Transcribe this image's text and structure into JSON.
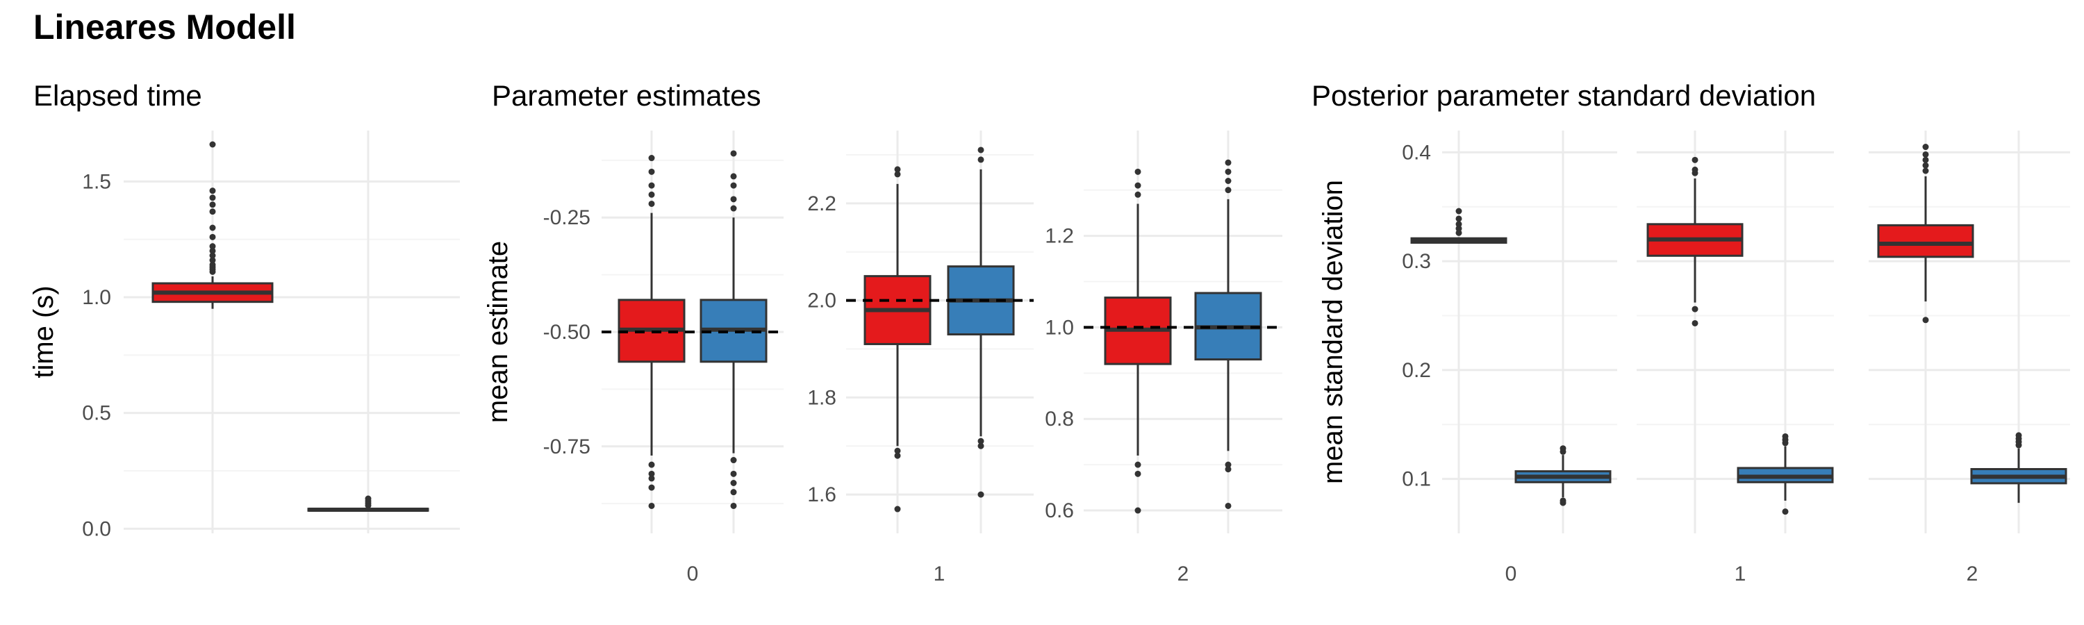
{
  "title": "Lineares Modell",
  "colors": {
    "red": "#e41a1c",
    "blue": "#377eb8",
    "grid_major": "#ebebeb",
    "grid_minor": "#f4f4f4",
    "stroke": "#333333"
  },
  "panel_titles": {
    "elapsed": "Elapsed time",
    "params": "Parameter estimates",
    "posterior": "Posterior parameter standard deviation"
  },
  "chart_data": [
    {
      "id": "elapsed",
      "type": "box",
      "title": "Elapsed time",
      "xlabel": "",
      "ylabel": "time (s)",
      "ylim": [
        -0.02,
        1.72
      ],
      "yticks": [
        0.0,
        0.5,
        1.0,
        1.5
      ],
      "ytick_labels": [
        "0.0",
        "0.5",
        "1.0",
        "1.5"
      ],
      "grid": true,
      "facets": [
        {
          "label": "",
          "boxes": [
            {
              "color": "red",
              "q1": 0.98,
              "median": 1.02,
              "q3": 1.06,
              "whisker_low": 0.95,
              "whisker_high": 1.09,
              "outliers": [
                1.11,
                1.12,
                1.13,
                1.14,
                1.16,
                1.18,
                1.2,
                1.22,
                1.26,
                1.3,
                1.37,
                1.4,
                1.43,
                1.46,
                1.66
              ]
            },
            {
              "color": "blue",
              "q1": 0.078,
              "median": 0.082,
              "q3": 0.086,
              "whisker_low": 0.075,
              "whisker_high": 0.092,
              "outliers": [
                0.1,
                0.11,
                0.12,
                0.13
              ]
            }
          ]
        }
      ]
    },
    {
      "id": "params",
      "type": "box",
      "title": "Parameter estimates",
      "xlabel": "",
      "ylabel": "mean estimate",
      "grid": true,
      "facets": [
        {
          "label": "0",
          "ylim": [
            -0.94,
            -0.06
          ],
          "yticks": [
            -0.75,
            -0.5,
            -0.25
          ],
          "ytick_labels": [
            "-0.75",
            "-0.50",
            "-0.25"
          ],
          "true_value": -0.5,
          "boxes": [
            {
              "color": "red",
              "q1": -0.565,
              "median": -0.495,
              "q3": -0.43,
              "whisker_low": -0.77,
              "whisker_high": -0.24,
              "outliers": [
                -0.22,
                -0.2,
                -0.18,
                -0.15,
                -0.12,
                -0.79,
                -0.81,
                -0.82,
                -0.84,
                -0.88
              ]
            },
            {
              "color": "blue",
              "q1": -0.565,
              "median": -0.495,
              "q3": -0.43,
              "whisker_low": -0.765,
              "whisker_high": -0.25,
              "outliers": [
                -0.23,
                -0.21,
                -0.18,
                -0.16,
                -0.11,
                -0.78,
                -0.81,
                -0.83,
                -0.85,
                -0.88
              ]
            }
          ]
        },
        {
          "label": "1",
          "ylim": [
            1.52,
            2.35
          ],
          "yticks": [
            1.6,
            1.8,
            2.0,
            2.2
          ],
          "ytick_labels": [
            "1.6",
            "1.8",
            "2.0",
            "2.2"
          ],
          "true_value": 2.0,
          "boxes": [
            {
              "color": "red",
              "q1": 1.91,
              "median": 1.98,
              "q3": 2.05,
              "whisker_low": 1.7,
              "whisker_high": 2.24,
              "outliers": [
                2.26,
                2.27,
                1.69,
                1.68,
                1.57
              ]
            },
            {
              "color": "blue",
              "q1": 1.93,
              "median": 2.0,
              "q3": 2.07,
              "whisker_low": 1.72,
              "whisker_high": 2.27,
              "outliers": [
                2.29,
                2.31,
                1.71,
                1.7,
                1.6
              ]
            }
          ]
        },
        {
          "label": "2",
          "ylim": [
            0.55,
            1.43
          ],
          "yticks": [
            0.6,
            0.8,
            1.0,
            1.2
          ],
          "ytick_labels": [
            "0.6",
            "0.8",
            "1.0",
            "1.2"
          ],
          "true_value": 1.0,
          "boxes": [
            {
              "color": "red",
              "q1": 0.92,
              "median": 0.995,
              "q3": 1.065,
              "whisker_low": 0.72,
              "whisker_high": 1.27,
              "outliers": [
                1.29,
                1.31,
                1.34,
                0.7,
                0.68,
                0.6
              ]
            },
            {
              "color": "blue",
              "q1": 0.93,
              "median": 1.0,
              "q3": 1.075,
              "whisker_low": 0.73,
              "whisker_high": 1.28,
              "outliers": [
                1.3,
                1.32,
                1.34,
                1.36,
                0.7,
                0.69,
                0.61
              ]
            }
          ]
        }
      ]
    },
    {
      "id": "posterior",
      "type": "box",
      "title": "Posterior parameter standard deviation",
      "xlabel": "",
      "ylabel": "mean standard deviation",
      "ylim": [
        0.05,
        0.42
      ],
      "yticks": [
        0.1,
        0.2,
        0.3,
        0.4
      ],
      "ytick_labels": [
        "0.1",
        "0.2",
        "0.3",
        "0.4"
      ],
      "grid": true,
      "facets": [
        {
          "label": "0",
          "boxes": [
            {
              "color": "red",
              "q1": 0.317,
              "median": 0.319,
              "q3": 0.321,
              "whisker_low": 0.316,
              "whisker_high": 0.322,
              "outliers": [
                0.326,
                0.33,
                0.334,
                0.339,
                0.346
              ]
            },
            {
              "color": "blue",
              "q1": 0.097,
              "median": 0.102,
              "q3": 0.107,
              "whisker_low": 0.083,
              "whisker_high": 0.122,
              "outliers": [
                0.125,
                0.128,
                0.08,
                0.078
              ]
            }
          ]
        },
        {
          "label": "1",
          "boxes": [
            {
              "color": "red",
              "q1": 0.305,
              "median": 0.32,
              "q3": 0.334,
              "whisker_low": 0.262,
              "whisker_high": 0.376,
              "outliers": [
                0.381,
                0.384,
                0.393,
                0.256,
                0.243
              ]
            },
            {
              "color": "blue",
              "q1": 0.097,
              "median": 0.102,
              "q3": 0.11,
              "whisker_low": 0.08,
              "whisker_high": 0.13,
              "outliers": [
                0.133,
                0.136,
                0.139,
                0.07
              ]
            }
          ]
        },
        {
          "label": "2",
          "boxes": [
            {
              "color": "red",
              "q1": 0.304,
              "median": 0.316,
              "q3": 0.333,
              "whisker_low": 0.263,
              "whisker_high": 0.378,
              "outliers": [
                0.383,
                0.388,
                0.393,
                0.398,
                0.405,
                0.246
              ]
            },
            {
              "color": "blue",
              "q1": 0.096,
              "median": 0.102,
              "q3": 0.109,
              "whisker_low": 0.078,
              "whisker_high": 0.128,
              "outliers": [
                0.131,
                0.134,
                0.137,
                0.14
              ]
            }
          ]
        }
      ]
    }
  ]
}
